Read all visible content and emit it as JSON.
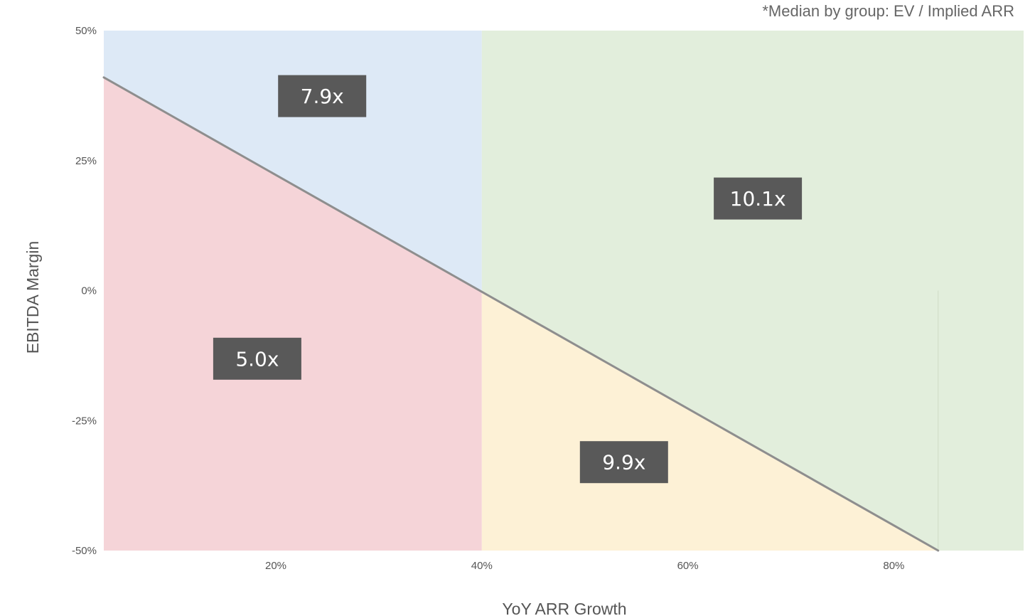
{
  "chart_data": {
    "type": "area",
    "note": "*Median by group: EV / Implied ARR",
    "xlabel": "YoY ARR Growth",
    "ylabel": "EBITDA Margin",
    "xlim": [
      3.3,
      92.6
    ],
    "ylim": [
      -50,
      50
    ],
    "x_ticks": [
      {
        "value": 20,
        "label": "20%"
      },
      {
        "value": 40,
        "label": "40%"
      },
      {
        "value": 60,
        "label": "60%"
      },
      {
        "value": 80,
        "label": "80%"
      }
    ],
    "y_ticks": [
      {
        "value": 50,
        "label": "50%"
      },
      {
        "value": 25,
        "label": "25%"
      },
      {
        "value": 0,
        "label": "0%"
      },
      {
        "value": -25,
        "label": "-25%"
      },
      {
        "value": -50,
        "label": "-50%"
      }
    ],
    "divider_line": {
      "x": [
        3.3,
        84.3
      ],
      "y": [
        41,
        -50
      ],
      "color": "#8e8e8e"
    },
    "zones": [
      {
        "name": "low-growth-high-margin",
        "label": "7.9x",
        "color": "#dde9f6",
        "label_x": 24.5,
        "label_y": 37.4
      },
      {
        "name": "low-growth-low-margin",
        "label": "5.0x",
        "color": "#f5d4d8",
        "label_x": 18.2,
        "label_y": -13.1
      },
      {
        "name": "high-growth-high-margin",
        "label": "10.1x",
        "color": "#e2eedc",
        "label_x": 66.8,
        "label_y": 17.7
      },
      {
        "name": "high-growth-low-margin",
        "label": "9.9x",
        "color": "#fdf1d6",
        "label_x": 53.8,
        "label_y": -33
      }
    ],
    "label_box_color": "#595959"
  }
}
